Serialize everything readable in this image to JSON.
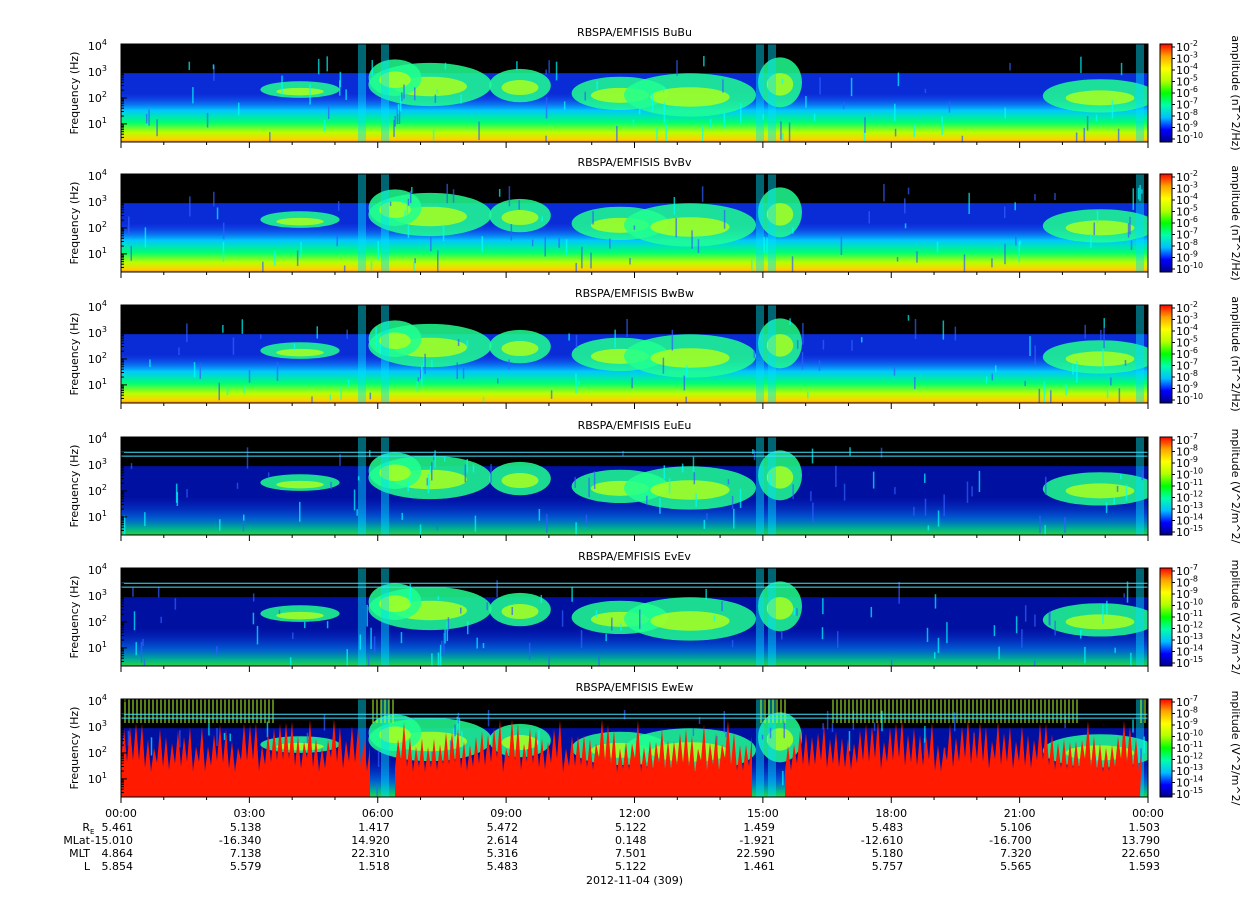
{
  "figure": {
    "date_label": "2012-11-04 (309)",
    "time_ticks": [
      "00:00",
      "03:00",
      "06:00",
      "09:00",
      "12:00",
      "15:00",
      "18:00",
      "21:00",
      "00:00"
    ],
    "ephemeris": {
      "labels": [
        "R",
        "MLat",
        "MLT",
        "L"
      ],
      "re_subscript": "E",
      "rows": [
        [
          "5.461",
          "5.138",
          "1.417",
          "5.472",
          "5.122",
          "1.459",
          "5.483",
          "5.106",
          "1.503"
        ],
        [
          "-15.010",
          "-16.340",
          "14.920",
          "2.614",
          "0.148",
          "-1.921",
          "-12.610",
          "-16.700",
          "13.790"
        ],
        [
          "4.864",
          "7.138",
          "22.310",
          "5.316",
          "7.501",
          "22.590",
          "5.180",
          "7.320",
          "22.650"
        ],
        [
          "5.854",
          "5.579",
          "1.518",
          "5.483",
          "5.122",
          "1.461",
          "5.757",
          "5.565",
          "1.593"
        ]
      ]
    }
  },
  "chart_data": [
    {
      "type": "heatmap",
      "title": "RBSPA/EMFISIS  BuBu",
      "ylabel": "Frequency (Hz)",
      "y_scale": "log",
      "y_ticks": [
        "10",
        "10",
        "10",
        "10"
      ],
      "y_tick_exponents": [
        "1",
        "2",
        "3",
        "4"
      ],
      "ylim": [
        2,
        12000
      ],
      "x_ticks": [
        "00:00",
        "03:00",
        "06:00",
        "09:00",
        "12:00",
        "15:00",
        "18:00",
        "21:00",
        "00:00"
      ],
      "colorbar_label": "amplitude (nT^2/Hz)",
      "colorbar_ticks": [
        "10",
        "10",
        "10",
        "10",
        "10",
        "10",
        "10",
        "10",
        "10"
      ],
      "colorbar_exponents": [
        "-2",
        "-3",
        "-4",
        "-5",
        "-6",
        "-7",
        "-8",
        "-9",
        "-10"
      ],
      "colormap": [
        "#00008b",
        "#0000ff",
        "#00bfff",
        "#00ffaa",
        "#00ff00",
        "#b4ff00",
        "#ffff00",
        "#ffa500",
        "#ff0000"
      ]
    },
    {
      "type": "heatmap",
      "title": "RBSPA/EMFISIS  BvBv",
      "ylabel": "Frequency (Hz)",
      "y_scale": "log",
      "y_ticks": [
        "10",
        "10",
        "10",
        "10"
      ],
      "y_tick_exponents": [
        "1",
        "2",
        "3",
        "4"
      ],
      "ylim": [
        2,
        12000
      ],
      "x_ticks": [
        "00:00",
        "03:00",
        "06:00",
        "09:00",
        "12:00",
        "15:00",
        "18:00",
        "21:00",
        "00:00"
      ],
      "colorbar_label": "amplitude (nT^2/Hz)",
      "colorbar_ticks": [
        "10",
        "10",
        "10",
        "10",
        "10",
        "10",
        "10",
        "10",
        "10"
      ],
      "colorbar_exponents": [
        "-2",
        "-3",
        "-4",
        "-5",
        "-6",
        "-7",
        "-8",
        "-9",
        "-10"
      ],
      "colormap": [
        "#00008b",
        "#0000ff",
        "#00bfff",
        "#00ffaa",
        "#00ff00",
        "#b4ff00",
        "#ffff00",
        "#ffa500",
        "#ff0000"
      ]
    },
    {
      "type": "heatmap",
      "title": "RBSPA/EMFISIS  BwBw",
      "ylabel": "Frequency (Hz)",
      "y_scale": "log",
      "y_ticks": [
        "10",
        "10",
        "10",
        "10"
      ],
      "y_tick_exponents": [
        "1",
        "2",
        "3",
        "4"
      ],
      "ylim": [
        2,
        12000
      ],
      "x_ticks": [
        "00:00",
        "03:00",
        "06:00",
        "09:00",
        "12:00",
        "15:00",
        "18:00",
        "21:00",
        "00:00"
      ],
      "colorbar_label": "amplitude (nT^2/Hz)",
      "colorbar_ticks": [
        "10",
        "10",
        "10",
        "10",
        "10",
        "10",
        "10",
        "10",
        "10"
      ],
      "colorbar_exponents": [
        "-2",
        "-3",
        "-4",
        "-5",
        "-6",
        "-7",
        "-8",
        "-9",
        "-10"
      ],
      "colormap": [
        "#00008b",
        "#0000ff",
        "#00bfff",
        "#00ffaa",
        "#00ff00",
        "#b4ff00",
        "#ffff00",
        "#ffa500",
        "#ff0000"
      ]
    },
    {
      "type": "heatmap",
      "title": "RBSPA/EMFISIS  EuEu",
      "ylabel": "Frequency (Hz)",
      "y_scale": "log",
      "y_ticks": [
        "10",
        "10",
        "10",
        "10"
      ],
      "y_tick_exponents": [
        "1",
        "2",
        "3",
        "4"
      ],
      "ylim": [
        2,
        12000
      ],
      "x_ticks": [
        "00:00",
        "03:00",
        "06:00",
        "09:00",
        "12:00",
        "15:00",
        "18:00",
        "21:00",
        "00:00"
      ],
      "colorbar_label": "mplitude (V^2/m^2/",
      "colorbar_ticks": [
        "10",
        "10",
        "10",
        "10",
        "10",
        "10",
        "10",
        "10",
        "10"
      ],
      "colorbar_exponents": [
        "-7",
        "-8",
        "-9",
        "-10",
        "-11",
        "-12",
        "-13",
        "-14",
        "-15"
      ],
      "colormap": [
        "#00008b",
        "#0000ff",
        "#00bfff",
        "#00ffaa",
        "#00ff00",
        "#b4ff00",
        "#ffff00",
        "#ffa500",
        "#ff0000"
      ]
    },
    {
      "type": "heatmap",
      "title": "RBSPA/EMFISIS  EvEv",
      "ylabel": "Frequency (Hz)",
      "y_scale": "log",
      "y_ticks": [
        "10",
        "10",
        "10",
        "10"
      ],
      "y_tick_exponents": [
        "1",
        "2",
        "3",
        "4"
      ],
      "ylim": [
        2,
        12000
      ],
      "x_ticks": [
        "00:00",
        "03:00",
        "06:00",
        "09:00",
        "12:00",
        "15:00",
        "18:00",
        "21:00",
        "00:00"
      ],
      "colorbar_label": "mplitude (V^2/m^2/",
      "colorbar_ticks": [
        "10",
        "10",
        "10",
        "10",
        "10",
        "10",
        "10",
        "10",
        "10"
      ],
      "colorbar_exponents": [
        "-7",
        "-8",
        "-9",
        "-10",
        "-11",
        "-12",
        "-13",
        "-14",
        "-15"
      ],
      "colormap": [
        "#00008b",
        "#0000ff",
        "#00bfff",
        "#00ffaa",
        "#00ff00",
        "#b4ff00",
        "#ffff00",
        "#ffa500",
        "#ff0000"
      ]
    },
    {
      "type": "heatmap",
      "title": "RBSPA/EMFISIS  EwEw",
      "ylabel": "Frequency (Hz)",
      "y_scale": "log",
      "y_ticks": [
        "10",
        "10",
        "10",
        "10"
      ],
      "y_tick_exponents": [
        "1",
        "2",
        "3",
        "4"
      ],
      "ylim": [
        2,
        12000
      ],
      "x_ticks": [
        "00:00",
        "03:00",
        "06:00",
        "09:00",
        "12:00",
        "15:00",
        "18:00",
        "21:00",
        "00:00"
      ],
      "colorbar_label": "mplitude (V^2/m^2/",
      "colorbar_ticks": [
        "10",
        "10",
        "10",
        "10",
        "10",
        "10",
        "10",
        "10",
        "10"
      ],
      "colorbar_exponents": [
        "-7",
        "-8",
        "-9",
        "-10",
        "-11",
        "-12",
        "-13",
        "-14",
        "-15"
      ],
      "colormap": [
        "#00008b",
        "#0000ff",
        "#00bfff",
        "#00ffaa",
        "#00ff00",
        "#b4ff00",
        "#ffff00",
        "#ffa500",
        "#ff0000"
      ]
    }
  ]
}
